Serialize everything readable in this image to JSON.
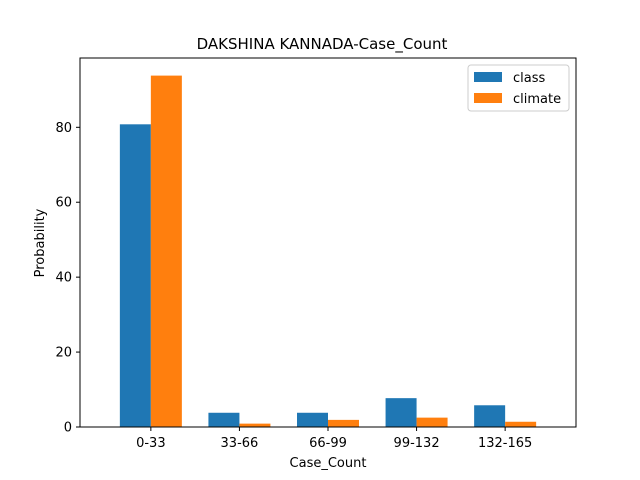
{
  "chart_data": {
    "type": "bar",
    "title": "DAKSHINA KANNADA-Case_Count",
    "xlabel": "Case_Count",
    "ylabel": "Probability",
    "categories": [
      "0-33",
      "33-66",
      "66-99",
      "99-132",
      "132-165"
    ],
    "series": [
      {
        "name": "class",
        "color": "#1f77b4",
        "values": [
          80.8,
          3.8,
          3.8,
          7.7,
          5.8
        ]
      },
      {
        "name": "climate",
        "color": "#ff7f0e",
        "values": [
          93.8,
          0.9,
          1.9,
          2.5,
          1.4
        ]
      }
    ],
    "ylim": [
      0,
      98.5
    ],
    "yticks": [
      0,
      20,
      40,
      60,
      80
    ],
    "legend": "top-right",
    "grid": false
  }
}
